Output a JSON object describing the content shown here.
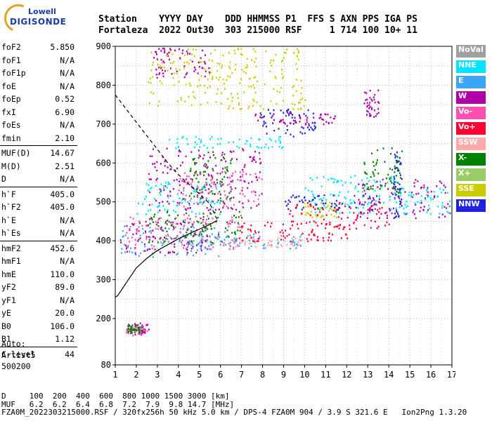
{
  "logo": {
    "line1": "Lowell",
    "line2": "DIGISONDE"
  },
  "header": {
    "row1": "Station    YYYY DAY    DDD HHMMSS P1  FFS S AXN PPS IGA PS",
    "row2": "Fortaleza  2022 Out30  303 215000 RSF     1 714 100 10+ 11"
  },
  "params": [
    {
      "k": "foF2",
      "v": "5.850"
    },
    {
      "k": "foF1",
      "v": "N/A"
    },
    {
      "k": "foF1p",
      "v": "N/A"
    },
    {
      "k": "foE",
      "v": "N/A"
    },
    {
      "k": "foEp",
      "v": "0.52"
    },
    {
      "k": "fxI",
      "v": "6.90"
    },
    {
      "k": "foEs",
      "v": "N/A"
    },
    {
      "k": "fmin",
      "v": "2.10"
    },
    {
      "k": "MUF(D)",
      "v": "14.67"
    },
    {
      "k": "M(D)",
      "v": "2.51"
    },
    {
      "k": "D",
      "v": "N/A"
    },
    {
      "k": "h`F",
      "v": "405.0"
    },
    {
      "k": "h`F2",
      "v": "405.0"
    },
    {
      "k": "h`E",
      "v": "N/A"
    },
    {
      "k": "h`Es",
      "v": "N/A"
    },
    {
      "k": "hmF2",
      "v": "452.6"
    },
    {
      "k": "hmF1",
      "v": "N/A"
    },
    {
      "k": "hmE",
      "v": "110.0"
    },
    {
      "k": "yF2",
      "v": "89.0"
    },
    {
      "k": "yF1",
      "v": "N/A"
    },
    {
      "k": "yE",
      "v": "20.0"
    },
    {
      "k": "B0",
      "v": "106.0"
    },
    {
      "k": "B1",
      "v": "1.12"
    },
    {
      "k": "C-level",
      "v": "44"
    }
  ],
  "auto": {
    "line1": "Auto:",
    "line2": "Artist5",
    "line3": "500200"
  },
  "legend": [
    {
      "label": "NoVal",
      "color": "#a0a0a0"
    },
    {
      "label": "NNE",
      "color": "#00e5ff"
    },
    {
      "label": "E",
      "color": "#3da5f5"
    },
    {
      "label": "W",
      "color": "#b000a8"
    },
    {
      "label": "Vo-",
      "color": "#ff4fb0"
    },
    {
      "label": "Vo+",
      "color": "#ff0030"
    },
    {
      "label": "SSW",
      "color": "#ffaaaa"
    },
    {
      "label": "X-",
      "color": "#008000"
    },
    {
      "label": "X+",
      "color": "#99cc66"
    },
    {
      "label": "SSE",
      "color": "#cccc00"
    },
    {
      "label": "NNW",
      "color": "#2020e0"
    }
  ],
  "footer": {
    "line1": "D     100  200  400  600  800 1000 1500 3000 [km]",
    "line2": "MUF   6.2  6.2  6.4  6.8  7.2  7.9  9.8 14.7 [MHz]",
    "line3": "FZA0M_2022303215000.RSF / 320fx256h 50 kHz 5.0 km / DPS-4 FZA0M 904 / 3.9 S 321.6 E   Ion2Png 1.3.20"
  },
  "chart_data": {
    "type": "scatter",
    "xlim": [
      1,
      17
    ],
    "ylim": [
      80,
      900
    ],
    "xticks": [
      1,
      2,
      3,
      4,
      5,
      6,
      7,
      8,
      9,
      10,
      11,
      12,
      13,
      14,
      15,
      16,
      17
    ],
    "yticks": [
      80,
      200,
      300,
      400,
      500,
      600,
      700,
      800,
      900
    ],
    "ytick_labels": [
      "80",
      "200",
      "300",
      "400",
      "500",
      "600",
      "700",
      "800",
      "900"
    ],
    "y_scale_note": "upper region 200-900 linear, 80-200 compressed",
    "grid": true,
    "profile": [
      [
        1.1,
        258
      ],
      [
        1.5,
        290
      ],
      [
        2,
        330
      ],
      [
        2.5,
        355
      ],
      [
        3,
        375
      ],
      [
        3.5,
        390
      ],
      [
        4,
        405
      ],
      [
        4.5,
        418
      ],
      [
        5,
        430
      ],
      [
        5.5,
        442
      ],
      [
        5.85,
        452.6
      ]
    ],
    "profile_dashed_upper": [
      [
        1,
        775
      ],
      [
        1.5,
        740
      ],
      [
        2,
        705
      ],
      [
        2.5,
        670
      ],
      [
        3,
        635
      ],
      [
        3.5,
        600
      ],
      [
        4,
        570
      ],
      [
        4.5,
        545
      ],
      [
        5,
        520
      ],
      [
        5.5,
        495
      ],
      [
        5.85,
        453
      ]
    ],
    "profile_dashed_lower": [
      [
        1,
        255
      ],
      [
        1.1,
        258
      ]
    ],
    "clusters": [
      {
        "dir": "W",
        "x": [
          1.4,
          2.6
        ],
        "y": [
          160,
          190
        ]
      },
      {
        "dir": "Vo-",
        "x": [
          1.5,
          2.5
        ],
        "y": [
          158,
          182
        ]
      },
      {
        "dir": "X-",
        "x": [
          1.5,
          2.3
        ],
        "y": [
          165,
          185
        ]
      },
      {
        "dir": "E",
        "x": [
          1.2,
          6.0
        ],
        "y": [
          360,
          440
        ]
      },
      {
        "dir": "W",
        "x": [
          1.2,
          5.5
        ],
        "y": [
          370,
          460
        ]
      },
      {
        "dir": "Vo-",
        "x": [
          1.5,
          7.0
        ],
        "y": [
          380,
          470
        ]
      },
      {
        "dir": "X-",
        "x": [
          2.5,
          7.0
        ],
        "y": [
          395,
          480
        ]
      },
      {
        "dir": "E",
        "x": [
          4.0,
          10.0
        ],
        "y": [
          380,
          420
        ]
      },
      {
        "dir": "SSW",
        "x": [
          6.5,
          10.0
        ],
        "y": [
          385,
          410
        ]
      },
      {
        "dir": "Vo+",
        "x": [
          6.8,
          12.0
        ],
        "y": [
          400,
          450
        ]
      },
      {
        "dir": "NNE",
        "x": [
          2.0,
          6.0
        ],
        "y": [
          470,
          560
        ]
      },
      {
        "dir": "W",
        "x": [
          2.5,
          8.0
        ],
        "y": [
          480,
          640
        ]
      },
      {
        "dir": "X-",
        "x": [
          4.5,
          6.5
        ],
        "y": [
          500,
          630
        ]
      },
      {
        "dir": "Vo-",
        "x": [
          4.0,
          8.0
        ],
        "y": [
          490,
          580
        ]
      },
      {
        "dir": "NNE",
        "x": [
          3.5,
          9.0
        ],
        "y": [
          640,
          670
        ]
      },
      {
        "dir": "NNW",
        "x": [
          7.8,
          10.5
        ],
        "y": [
          670,
          740
        ]
      },
      {
        "dir": "W",
        "x": [
          7.5,
          11.5
        ],
        "y": [
          700,
          730
        ]
      },
      {
        "dir": "SSE",
        "x": [
          2.5,
          10.0
        ],
        "y": [
          740,
          900
        ]
      },
      {
        "dir": "W",
        "x": [
          2.8,
          5.5
        ],
        "y": [
          820,
          900
        ]
      },
      {
        "dir": "NNE",
        "x": [
          10.0,
          14.5
        ],
        "y": [
          470,
          570
        ]
      },
      {
        "dir": "SSE",
        "x": [
          9.8,
          11.5
        ],
        "y": [
          460,
          500
        ]
      },
      {
        "dir": "Vo+",
        "x": [
          9.0,
          14.0
        ],
        "y": [
          430,
          500
        ]
      },
      {
        "dir": "NNW",
        "x": [
          9.0,
          13.5
        ],
        "y": [
          480,
          520
        ]
      },
      {
        "dir": "W",
        "x": [
          12.5,
          17.0
        ],
        "y": [
          460,
          560
        ]
      },
      {
        "dir": "NNE",
        "x": [
          14.0,
          17.0
        ],
        "y": [
          470,
          540
        ]
      },
      {
        "dir": "X-",
        "x": [
          12.8,
          14.6
        ],
        "y": [
          520,
          640
        ]
      },
      {
        "dir": "W",
        "x": [
          12.8,
          13.5
        ],
        "y": [
          720,
          790
        ]
      },
      {
        "dir": "NNW",
        "x": [
          14.2,
          14.6
        ],
        "y": [
          460,
          640
        ]
      }
    ]
  }
}
